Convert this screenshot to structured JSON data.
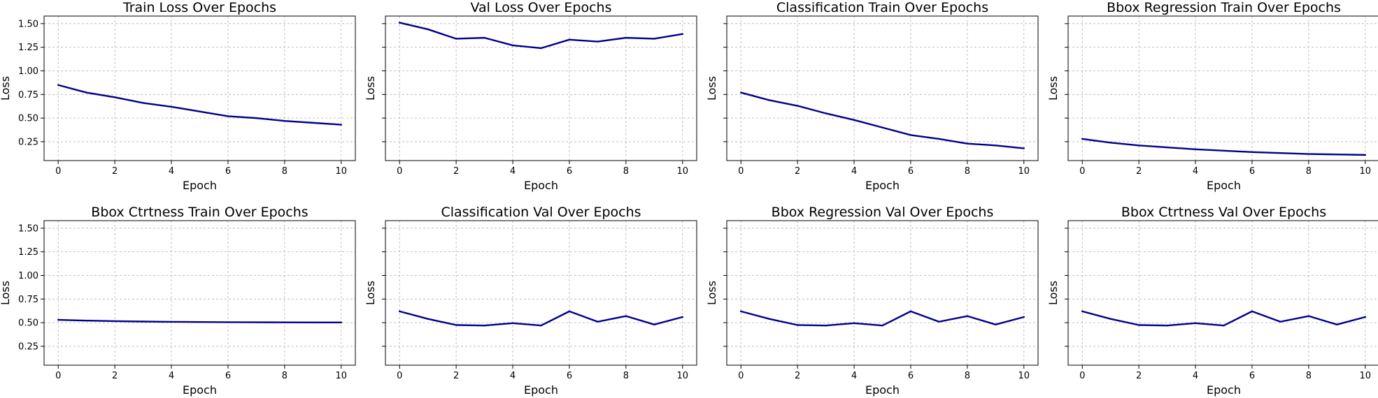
{
  "chart_data": [
    {
      "type": "line",
      "title": "Train Loss Over Epochs",
      "xlabel": "Epoch",
      "ylabel": "Loss",
      "xlim": [
        -0.5,
        10.5
      ],
      "ylim": [
        0.05,
        1.58
      ],
      "xticks": [
        0,
        2,
        4,
        6,
        8,
        10
      ],
      "yticks": [
        "0.25",
        "0.50",
        "0.75",
        "1.00",
        "1.25",
        "1.50"
      ],
      "show_yticklabels": true,
      "grid": true,
      "series": [
        {
          "color": "#00008b",
          "x": [
            0,
            1,
            2,
            3,
            4,
            5,
            6,
            7,
            8,
            9,
            10
          ],
          "y": [
            0.85,
            0.77,
            0.72,
            0.66,
            0.62,
            0.57,
            0.52,
            0.5,
            0.47,
            0.45,
            0.43
          ]
        }
      ]
    },
    {
      "type": "line",
      "title": "Val Loss Over Epochs",
      "xlabel": "Epoch",
      "ylabel": "Loss",
      "xlim": [
        -0.5,
        10.5
      ],
      "ylim": [
        0.05,
        1.58
      ],
      "xticks": [
        0,
        2,
        4,
        6,
        8,
        10
      ],
      "yticks": [
        "0.25",
        "0.50",
        "0.75",
        "1.00",
        "1.25",
        "1.50"
      ],
      "show_yticklabels": false,
      "grid": true,
      "series": [
        {
          "color": "#00008b",
          "x": [
            0,
            1,
            2,
            3,
            4,
            5,
            6,
            7,
            8,
            9,
            10
          ],
          "y": [
            1.51,
            1.44,
            1.34,
            1.35,
            1.27,
            1.24,
            1.33,
            1.31,
            1.35,
            1.34,
            1.39
          ]
        }
      ]
    },
    {
      "type": "line",
      "title": "Classification Train Over Epochs",
      "xlabel": "Epoch",
      "ylabel": "Loss",
      "xlim": [
        -0.5,
        10.5
      ],
      "ylim": [
        0.05,
        1.58
      ],
      "xticks": [
        0,
        2,
        4,
        6,
        8,
        10
      ],
      "yticks": [
        "0.25",
        "0.50",
        "0.75",
        "1.00",
        "1.25",
        "1.50"
      ],
      "show_yticklabels": false,
      "grid": true,
      "series": [
        {
          "color": "#00008b",
          "x": [
            0,
            1,
            2,
            3,
            4,
            5,
            6,
            7,
            8,
            9,
            10
          ],
          "y": [
            0.77,
            0.69,
            0.63,
            0.55,
            0.48,
            0.4,
            0.32,
            0.28,
            0.23,
            0.21,
            0.18
          ]
        }
      ]
    },
    {
      "type": "line",
      "title": "Bbox Regression Train Over Epochs",
      "xlabel": "Epoch",
      "ylabel": "Loss",
      "xlim": [
        -0.5,
        10.5
      ],
      "ylim": [
        0.05,
        1.58
      ],
      "xticks": [
        0,
        2,
        4,
        6,
        8,
        10
      ],
      "yticks": [
        "0.25",
        "0.50",
        "0.75",
        "1.00",
        "1.25",
        "1.50"
      ],
      "show_yticklabels": false,
      "grid": true,
      "series": [
        {
          "color": "#00008b",
          "x": [
            0,
            1,
            2,
            3,
            4,
            5,
            6,
            7,
            8,
            9,
            10
          ],
          "y": [
            0.28,
            0.24,
            0.21,
            0.19,
            0.17,
            0.155,
            0.14,
            0.13,
            0.12,
            0.115,
            0.11
          ]
        }
      ]
    },
    {
      "type": "line",
      "title": "Bbox Ctrtness Train Over Epochs",
      "xlabel": "Epoch",
      "ylabel": "Loss",
      "xlim": [
        -0.5,
        10.5
      ],
      "ylim": [
        0.05,
        1.58
      ],
      "xticks": [
        0,
        2,
        4,
        6,
        8,
        10
      ],
      "yticks": [
        "0.25",
        "0.50",
        "0.75",
        "1.00",
        "1.25",
        "1.50"
      ],
      "show_yticklabels": true,
      "grid": true,
      "series": [
        {
          "color": "#00008b",
          "x": [
            0,
            1,
            2,
            3,
            4,
            5,
            6,
            7,
            8,
            9,
            10
          ],
          "y": [
            0.53,
            0.522,
            0.516,
            0.512,
            0.509,
            0.507,
            0.505,
            0.504,
            0.503,
            0.502,
            0.502
          ]
        }
      ]
    },
    {
      "type": "line",
      "title": "Classification Val Over Epochs",
      "xlabel": "Epoch",
      "ylabel": "Loss",
      "xlim": [
        -0.5,
        10.5
      ],
      "ylim": [
        0.05,
        1.58
      ],
      "xticks": [
        0,
        2,
        4,
        6,
        8,
        10
      ],
      "yticks": [
        "0.25",
        "0.50",
        "0.75",
        "1.00",
        "1.25",
        "1.50"
      ],
      "show_yticklabels": false,
      "grid": true,
      "series": [
        {
          "color": "#00008b",
          "x": [
            0,
            1,
            2,
            3,
            4,
            5,
            6,
            7,
            8,
            9,
            10
          ],
          "y": [
            0.62,
            0.54,
            0.475,
            0.47,
            0.495,
            0.47,
            0.62,
            0.51,
            0.57,
            0.48,
            0.56
          ]
        }
      ]
    },
    {
      "type": "line",
      "title": "Bbox Regression Val Over Epochs",
      "xlabel": "Epoch",
      "ylabel": "Loss",
      "xlim": [
        -0.5,
        10.5
      ],
      "ylim": [
        0.05,
        1.58
      ],
      "xticks": [
        0,
        2,
        4,
        6,
        8,
        10
      ],
      "yticks": [
        "0.25",
        "0.50",
        "0.75",
        "1.00",
        "1.25",
        "1.50"
      ],
      "show_yticklabels": false,
      "grid": true,
      "series": [
        {
          "color": "#00008b",
          "x": [
            0,
            1,
            2,
            3,
            4,
            5,
            6,
            7,
            8,
            9,
            10
          ],
          "y": [
            0.62,
            0.54,
            0.475,
            0.47,
            0.495,
            0.47,
            0.62,
            0.51,
            0.57,
            0.48,
            0.56
          ]
        }
      ]
    },
    {
      "type": "line",
      "title": "Bbox Ctrtness Val Over Epochs",
      "xlabel": "Epoch",
      "ylabel": "Loss",
      "xlim": [
        -0.5,
        10.5
      ],
      "ylim": [
        0.05,
        1.58
      ],
      "xticks": [
        0,
        2,
        4,
        6,
        8,
        10
      ],
      "yticks": [
        "0.25",
        "0.50",
        "0.75",
        "1.00",
        "1.25",
        "1.50"
      ],
      "show_yticklabels": false,
      "grid": true,
      "series": [
        {
          "color": "#00008b",
          "x": [
            0,
            1,
            2,
            3,
            4,
            5,
            6,
            7,
            8,
            9,
            10
          ],
          "y": [
            0.62,
            0.54,
            0.475,
            0.47,
            0.495,
            0.47,
            0.62,
            0.51,
            0.57,
            0.48,
            0.56
          ]
        }
      ]
    }
  ]
}
